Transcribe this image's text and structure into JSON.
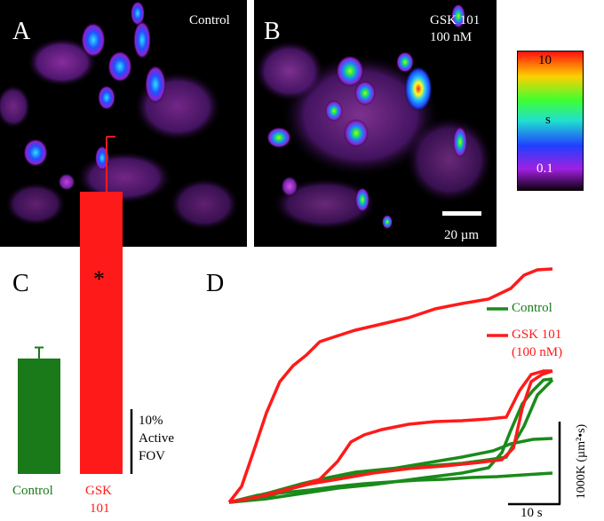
{
  "panels": {
    "a": {
      "letter": "A",
      "label": "Control"
    },
    "b": {
      "letter": "B",
      "label_line1": "GSK 101",
      "label_line2": "100 nM",
      "scalebar": "20 µm"
    },
    "c": {
      "letter": "C"
    },
    "d": {
      "letter": "D"
    }
  },
  "colorbar": {
    "max": "10",
    "unit": "s",
    "min": "0.1"
  },
  "chart_data": [
    {
      "type": "bar",
      "categories": [
        "Control",
        "GSK 101"
      ],
      "values": [
        18,
        44
      ],
      "errors": [
        1.7,
        8.5
      ],
      "colors": [
        "#1a7a1a",
        "#ff1a1a"
      ],
      "significance": "*",
      "scale_bar_label": [
        "10%",
        "Active",
        "FOV"
      ],
      "scale_bar_value": 10
    },
    {
      "type": "line",
      "legend": [
        {
          "name": "Control",
          "color": "#1a7a1a"
        },
        {
          "name": "GSK 101\n(100 nM)",
          "color": "#ff1a1a"
        }
      ],
      "scale_y_label": "1000K (µm²•s)",
      "scale_x_label": "10 s"
    }
  ]
}
